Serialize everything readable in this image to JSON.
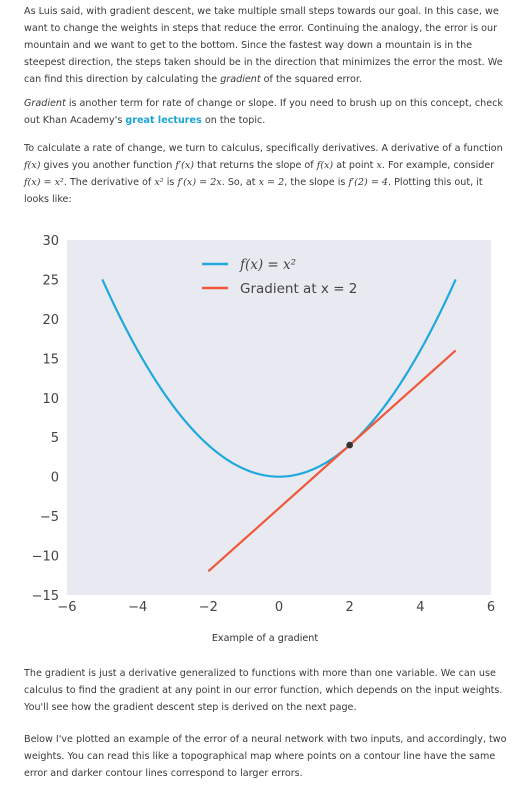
{
  "text": {
    "p1": "As Luis said, with gradient descent, we take multiple small steps towards our goal. In this case, we want to change the weights in steps that reduce the error. Continuing the analogy, the error is our mountain and we want to get to the bottom. Since the fastest way down a mountain is in the steepest direction, the steps taken should be in the direction that minimizes the error the most. We can find this direction by calculating the",
    "p1_em": "gradient",
    "p1_end": "of the squared error.",
    "p2_em": "Gradient",
    "p2_a": "is another term for rate of change or slope. If you need to brush up on this concept, check out Khan Academy's",
    "p2_link": "great lectures",
    "p2_b": "on the topic.",
    "p3_a": "To calculate a rate of change, we turn to calculus, specifically derivatives. A derivative of a function",
    "p3_b": "gives you another function",
    "p3_c": "that returns the slope of",
    "p3_d": "at point",
    "p3_e": ". For example, consider",
    "p3_f": ". The derivative of",
    "p3_g": "is",
    "p3_h": ". So, at",
    "p3_i": ", the slope is",
    "p3_j": ". Plotting this out, it looks like:",
    "math_fx": "f(x)",
    "math_fpx": "f′(x)",
    "math_x": "x",
    "math_fdef": "f(x) = x²",
    "math_x2": "x²",
    "math_deriv": "f′(x) = 2x",
    "math_at": "x = 2",
    "math_slope": "f′(2) = 4",
    "caption": "Example of a gradient",
    "p4": "The gradient is just a derivative generalized to functions with more than one variable. We can use calculus to find the gradient at any point in our error function, which depends on the input weights. You'll see how the gradient descent step is derived on the next page.",
    "p5": "Below I've plotted an example of the error of a neural network with two inputs, and accordingly, two weights. You can read this like a topographical map where points on a contour line have the same error and darker contour lines correspond to larger errors."
  },
  "chart_data": {
    "type": "line",
    "title": "",
    "xlabel": "",
    "ylabel": "",
    "xlim": [
      -6,
      6
    ],
    "ylim": [
      -15,
      30
    ],
    "xticks": [
      -6,
      -4,
      -2,
      0,
      2,
      4,
      6
    ],
    "yticks": [
      -15,
      -10,
      -5,
      0,
      5,
      10,
      15,
      20,
      25,
      30
    ],
    "grid": false,
    "legend_position": "top-right",
    "series": [
      {
        "name": "f(x) = x²",
        "expression": "x^2",
        "x_range": [
          -5,
          5
        ],
        "color": "#1fa9dd"
      },
      {
        "name": "Gradient at x = 2",
        "expression": "4x - 4",
        "x_range": [
          -2,
          5
        ],
        "color": "#f0583a"
      }
    ],
    "highlight_point": {
      "x": 2,
      "y": 4,
      "color": "#333333"
    }
  }
}
